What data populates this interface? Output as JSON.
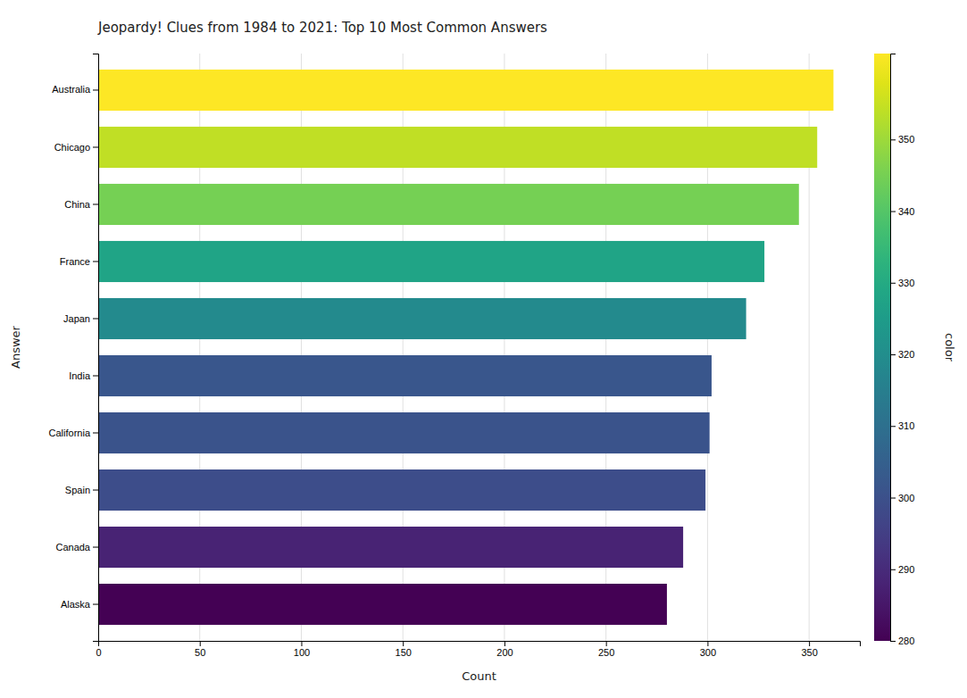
{
  "chart_data": {
    "type": "bar",
    "orientation": "horizontal",
    "title": "Jeopardy! Clues from 1984 to 2021: Top 10 Most Common Answers",
    "xlabel": "Count",
    "ylabel": "Answer",
    "categories": [
      "Alaska",
      "Canada",
      "Spain",
      "California",
      "India",
      "Japan",
      "France",
      "China",
      "Chicago",
      "Australia"
    ],
    "values": [
      280,
      288,
      299,
      301,
      302,
      319,
      328,
      345,
      354,
      362
    ],
    "xlim": [
      0,
      375
    ],
    "xticks": [
      0,
      50,
      100,
      150,
      200,
      250,
      300,
      350
    ],
    "grid": true,
    "colorbar": {
      "label": "color",
      "range": [
        280,
        362
      ],
      "ticks": [
        280,
        290,
        300,
        310,
        320,
        330,
        340,
        350
      ]
    }
  }
}
